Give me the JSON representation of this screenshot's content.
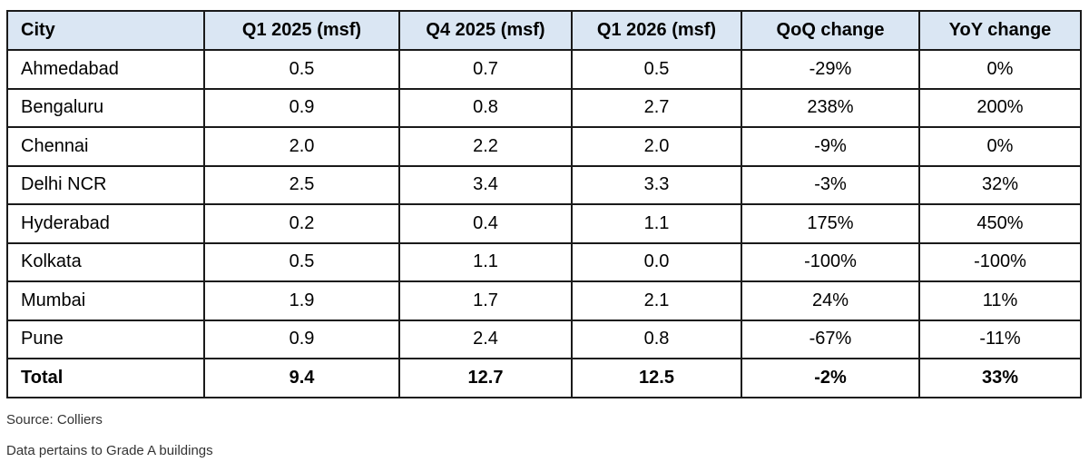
{
  "table": {
    "headers": [
      "City",
      "Q1 2025 (msf)",
      "Q4 2025 (msf)",
      "Q1 2026 (msf)",
      "QoQ change",
      "YoY change"
    ],
    "rows": [
      [
        "Ahmedabad",
        "0.5",
        "0.7",
        "0.5",
        "-29%",
        "0%"
      ],
      [
        "Bengaluru",
        "0.9",
        "0.8",
        "2.7",
        "238%",
        "200%"
      ],
      [
        "Chennai",
        "2.0",
        "2.2",
        "2.0",
        "-9%",
        "0%"
      ],
      [
        "Delhi NCR",
        "2.5",
        "3.4",
        "3.3",
        "-3%",
        "32%"
      ],
      [
        "Hyderabad",
        "0.2",
        "0.4",
        "1.1",
        "175%",
        "450%"
      ],
      [
        "Kolkata",
        "0.5",
        "1.1",
        "0.0",
        "-100%",
        "-100%"
      ],
      [
        "Mumbai",
        "1.9",
        "1.7",
        "2.1",
        "24%",
        "11%"
      ],
      [
        "Pune",
        "0.9",
        "2.4",
        "0.8",
        "-67%",
        "-11%"
      ]
    ],
    "total": [
      "Total",
      "9.4",
      "12.7",
      "12.5",
      "-2%",
      "33%"
    ]
  },
  "notes": {
    "source": "Source: Colliers",
    "data_note": "Data pertains to Grade A buildings"
  },
  "colors": {
    "header_background": "#dae6f3",
    "border": "#1a1a1a"
  }
}
